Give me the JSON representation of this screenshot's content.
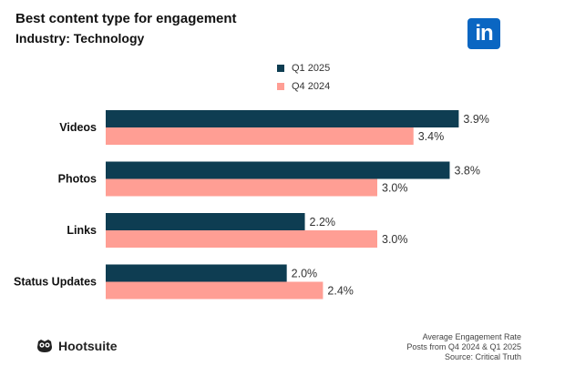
{
  "colors": {
    "primary": "#0e3d52",
    "secondary": "#ff9e94",
    "linkedin": "#0a66c2"
  },
  "header": {
    "title": "Best content type for engagement",
    "subtitle": "Industry: Technology",
    "logo_icon": "linkedin-icon",
    "logo_text": "in"
  },
  "chart_data": {
    "type": "bar",
    "orientation": "horizontal",
    "categories": [
      "Videos",
      "Photos",
      "Links",
      "Status Updates"
    ],
    "series": [
      {
        "name": "Q1 2025",
        "values": [
          3.9,
          3.8,
          2.2,
          2.0
        ],
        "labels": [
          "3.9%",
          "3.8%",
          "2.2%",
          "2.0%"
        ]
      },
      {
        "name": "Q4 2024",
        "values": [
          3.4,
          3.0,
          3.0,
          2.4
        ],
        "labels": [
          "3.4%",
          "3.0%",
          "3.0%",
          "2.4%"
        ]
      }
    ],
    "title": "Best content type for engagement",
    "xlabel": "",
    "ylabel": "",
    "xlim": [
      0,
      4.5
    ],
    "grid": false,
    "legend": "top-center"
  },
  "footer": {
    "brand": "Hootsuite",
    "brand_icon": "owl-icon",
    "notes": [
      "Average Engagement Rate",
      "Posts from Q4 2024 & Q1 2025",
      "Source: Critical Truth"
    ]
  }
}
